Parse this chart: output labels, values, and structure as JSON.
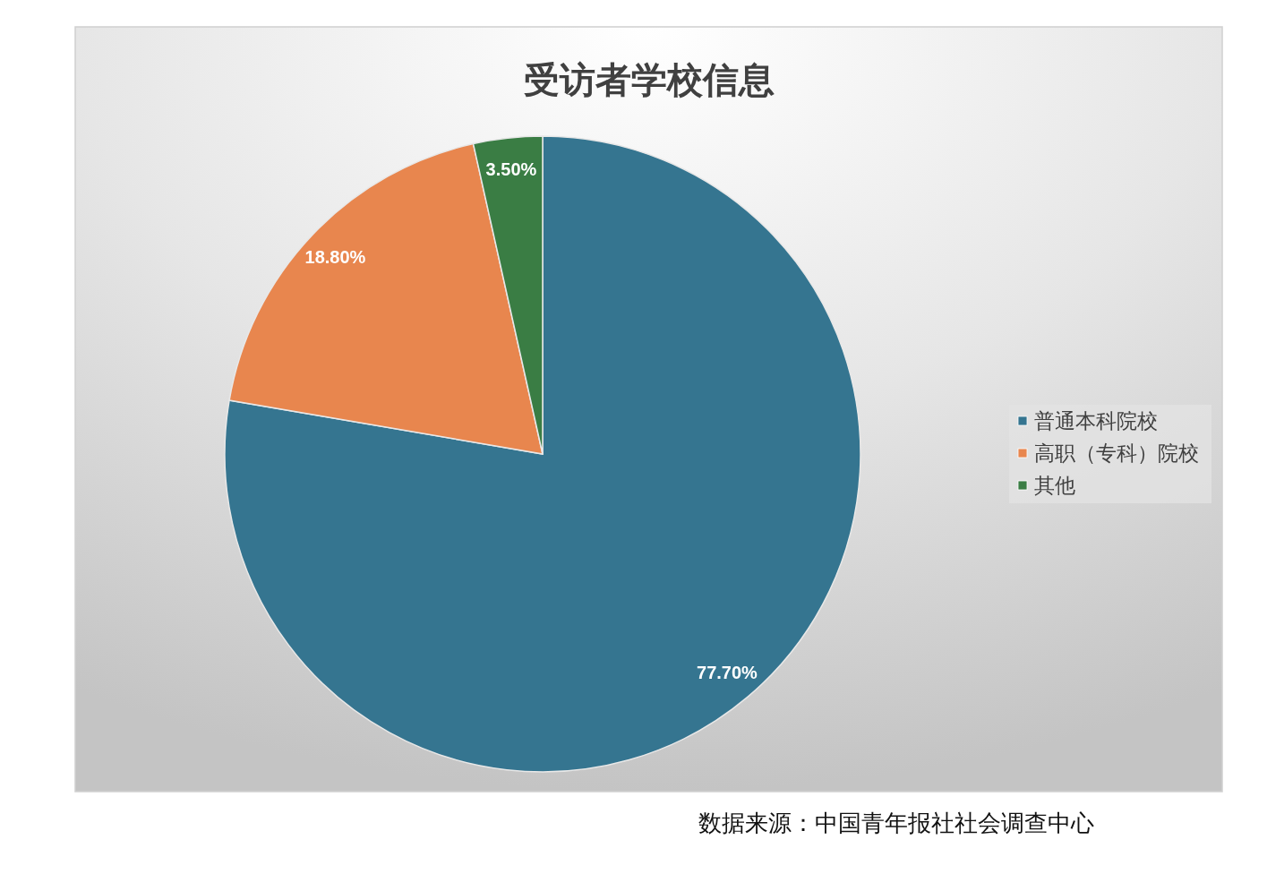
{
  "chart_data": {
    "type": "pie",
    "title": "受访者学校信息",
    "categories": [
      "普通本科院校",
      "高职（专科）院校",
      "其他"
    ],
    "values": [
      77.7,
      18.8,
      3.5
    ],
    "colors": [
      "#357590",
      "#e8864e",
      "#3a7d44"
    ],
    "value_labels": [
      "77.70%",
      "18.80%",
      "3.50%"
    ],
    "legend": "right",
    "annotations": [
      "数据来源：中国青年报社社会调查中心"
    ]
  }
}
